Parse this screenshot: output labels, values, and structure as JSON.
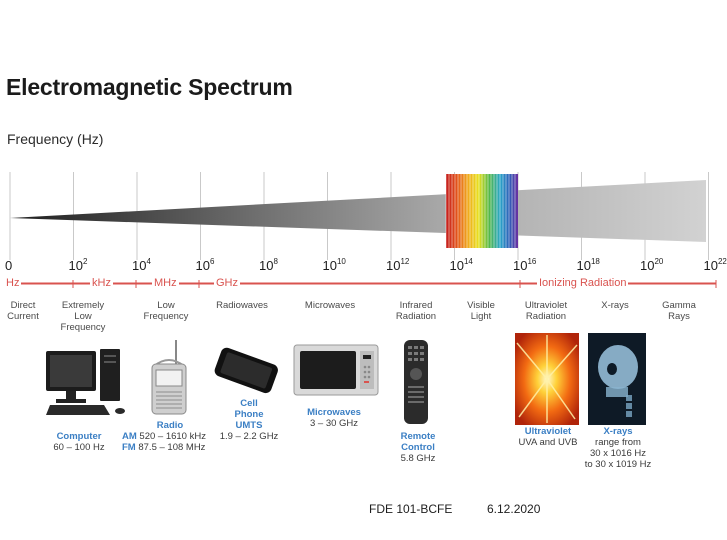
{
  "title": "Electromagnetic Spectrum",
  "frequency_label": "Frequency (Hz)",
  "ticks": [
    {
      "base": "0",
      "exp": ""
    },
    {
      "base": "10",
      "exp": "2"
    },
    {
      "base": "10",
      "exp": "4"
    },
    {
      "base": "10",
      "exp": "6"
    },
    {
      "base": "10",
      "exp": "8"
    },
    {
      "base": "10",
      "exp": "10"
    },
    {
      "base": "10",
      "exp": "12"
    },
    {
      "base": "10",
      "exp": "14"
    },
    {
      "base": "10",
      "exp": "16"
    },
    {
      "base": "10",
      "exp": "18"
    },
    {
      "base": "10",
      "exp": "20"
    },
    {
      "base": "10",
      "exp": "22"
    }
  ],
  "units": {
    "hz": "Hz",
    "khz": "kHz",
    "mhz": "MHz",
    "ghz": "GHz",
    "ionizing": "Ionizing Radiation"
  },
  "categories": {
    "direct_current": "Direct Current",
    "extremely_low": "Extremely Low Frequency",
    "low_frequency": "Low Frequency",
    "radiowaves": "Radiowaves",
    "microwaves": "Microwaves",
    "infrared": "Infrared Radiation",
    "visible": "Visible Light",
    "ultraviolet": "Ultraviolet Radiation",
    "xrays": "X-rays",
    "gamma": "Gamma Rays"
  },
  "captions": {
    "computer_title": "Computer",
    "computer_text": "60 – 100 Hz",
    "radio_title": "Radio",
    "radio_am_band": "AM",
    "radio_am_range": "520 – 1610 kHz",
    "radio_fm_band": "FM",
    "radio_fm_range": "87.5 – 108 MHz",
    "phone_title_1": "Cell",
    "phone_title_2": "Phone",
    "phone_title_3": "UMTS",
    "phone_text": "1.9 – 2.2 GHz",
    "microwave_title": "Microwaves",
    "microwave_text": "3 – 30 GHz",
    "remote_title_1": "Remote",
    "remote_title_2": "Control",
    "remote_text": "5.8 GHz",
    "uv_title": "Ultraviolet",
    "uv_text": "UVA and UVB",
    "xray_title": "X-rays",
    "xray_text_1": "range from",
    "xray_text_2": "30 x 1016 Hz",
    "xray_text_3": "to 30 x 1019 Hz"
  },
  "colors": {
    "unit_red": "#d9534f",
    "caption_blue": "#3b7fc4",
    "beam_dark": "#2a2a2a",
    "beam_light": "#c8c8c8"
  },
  "footer": {
    "left": "FDE 101-BCFE",
    "right": "6.12.2020"
  }
}
